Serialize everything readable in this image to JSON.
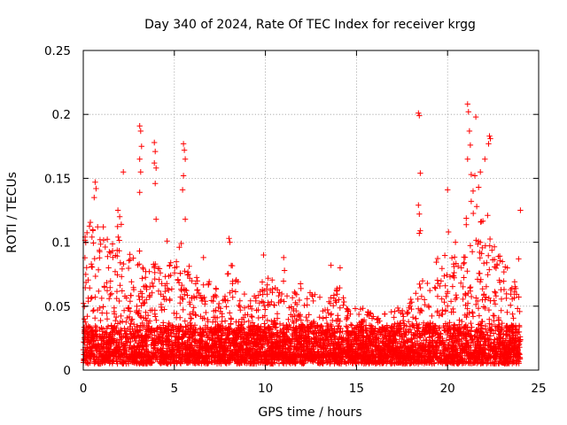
{
  "chart_data": {
    "type": "scatter",
    "title": "Day 340 of 2024, Rate Of TEC Index for receiver krgg",
    "xlabel": "GPS time / hours",
    "ylabel": "ROTI / TECUs",
    "xlim": [
      0,
      25
    ],
    "ylim": [
      0,
      0.25
    ],
    "xticks": [
      0,
      5,
      10,
      15,
      20,
      25
    ],
    "xtick_labels": [
      "0",
      "5",
      "10",
      "15",
      "20",
      "25"
    ],
    "yticks": [
      0,
      0.05,
      0.1,
      0.15,
      0.2,
      0.25
    ],
    "ytick_labels": [
      "0",
      "0.05",
      "0.1",
      "0.15",
      "0.2",
      "0.25"
    ],
    "grid": true,
    "marker": "plus",
    "color": "#ff0000",
    "data_span_hours": [
      0,
      24
    ],
    "baseline_band": [
      0.005,
      0.03
    ],
    "notable_points": [
      {
        "x": 3.1,
        "y": 0.191
      },
      {
        "x": 3.15,
        "y": 0.187
      },
      {
        "x": 3.2,
        "y": 0.175
      },
      {
        "x": 3.1,
        "y": 0.165
      },
      {
        "x": 3.15,
        "y": 0.155
      },
      {
        "x": 3.1,
        "y": 0.139
      },
      {
        "x": 3.9,
        "y": 0.178
      },
      {
        "x": 3.95,
        "y": 0.171
      },
      {
        "x": 3.9,
        "y": 0.162
      },
      {
        "x": 4.0,
        "y": 0.158
      },
      {
        "x": 3.95,
        "y": 0.146
      },
      {
        "x": 4.0,
        "y": 0.118
      },
      {
        "x": 5.5,
        "y": 0.177
      },
      {
        "x": 5.55,
        "y": 0.172
      },
      {
        "x": 5.6,
        "y": 0.165
      },
      {
        "x": 5.5,
        "y": 0.152
      },
      {
        "x": 5.45,
        "y": 0.141
      },
      {
        "x": 5.6,
        "y": 0.118
      },
      {
        "x": 2.2,
        "y": 0.155
      },
      {
        "x": 0.65,
        "y": 0.147
      },
      {
        "x": 0.7,
        "y": 0.142
      },
      {
        "x": 0.6,
        "y": 0.135
      },
      {
        "x": 1.9,
        "y": 0.125
      },
      {
        "x": 2.0,
        "y": 0.12
      },
      {
        "x": 18.4,
        "y": 0.201
      },
      {
        "x": 18.45,
        "y": 0.199
      },
      {
        "x": 18.5,
        "y": 0.154
      },
      {
        "x": 18.4,
        "y": 0.129
      },
      {
        "x": 18.45,
        "y": 0.122
      },
      {
        "x": 18.5,
        "y": 0.109
      },
      {
        "x": 18.45,
        "y": 0.107
      },
      {
        "x": 20.0,
        "y": 0.141
      },
      {
        "x": 20.05,
        "y": 0.108
      },
      {
        "x": 21.1,
        "y": 0.208
      },
      {
        "x": 21.15,
        "y": 0.202
      },
      {
        "x": 21.55,
        "y": 0.198
      },
      {
        "x": 21.2,
        "y": 0.187
      },
      {
        "x": 21.25,
        "y": 0.176
      },
      {
        "x": 21.1,
        "y": 0.165
      },
      {
        "x": 21.3,
        "y": 0.153
      },
      {
        "x": 21.5,
        "y": 0.152
      },
      {
        "x": 21.8,
        "y": 0.155
      },
      {
        "x": 22.3,
        "y": 0.183
      },
      {
        "x": 22.35,
        "y": 0.181
      },
      {
        "x": 22.25,
        "y": 0.177
      },
      {
        "x": 22.05,
        "y": 0.165
      },
      {
        "x": 21.7,
        "y": 0.143
      },
      {
        "x": 21.4,
        "y": 0.14
      },
      {
        "x": 21.6,
        "y": 0.128
      },
      {
        "x": 21.3,
        "y": 0.132
      },
      {
        "x": 22.2,
        "y": 0.121
      },
      {
        "x": 24.0,
        "y": 0.125
      },
      {
        "x": 8.0,
        "y": 0.103
      },
      {
        "x": 8.05,
        "y": 0.1
      },
      {
        "x": 9.9,
        "y": 0.09
      },
      {
        "x": 11.0,
        "y": 0.088
      },
      {
        "x": 13.6,
        "y": 0.082
      },
      {
        "x": 14.1,
        "y": 0.08
      },
      {
        "x": 4.6,
        "y": 0.101
      },
      {
        "x": 6.6,
        "y": 0.088
      },
      {
        "x": 1.1,
        "y": 0.112
      },
      {
        "x": 0.1,
        "y": 0.104
      },
      {
        "x": 23.9,
        "y": 0.087
      }
    ],
    "activity_envelope": {
      "hours": [
        0,
        0.5,
        1,
        1.5,
        2,
        2.5,
        3,
        3.5,
        4,
        4.5,
        5,
        5.5,
        6,
        6.5,
        7,
        7.5,
        8,
        8.5,
        9,
        9.5,
        10,
        10.5,
        11,
        11.5,
        12,
        12.5,
        13,
        13.5,
        14,
        14.5,
        15,
        15.5,
        16,
        16.5,
        17,
        17.5,
        18,
        18.5,
        19,
        19.5,
        20,
        20.5,
        21,
        21.5,
        22,
        22.5,
        23,
        23.5,
        24
      ],
      "upper_roti": [
        0.1,
        0.12,
        0.11,
        0.1,
        0.12,
        0.09,
        0.1,
        0.08,
        0.1,
        0.09,
        0.1,
        0.1,
        0.08,
        0.07,
        0.07,
        0.06,
        0.09,
        0.07,
        0.06,
        0.06,
        0.08,
        0.07,
        0.08,
        0.06,
        0.07,
        0.06,
        0.06,
        0.06,
        0.07,
        0.05,
        0.05,
        0.05,
        0.05,
        0.05,
        0.05,
        0.05,
        0.06,
        0.07,
        0.07,
        0.09,
        0.1,
        0.1,
        0.12,
        0.13,
        0.12,
        0.1,
        0.09,
        0.08,
        0.07
      ]
    }
  }
}
